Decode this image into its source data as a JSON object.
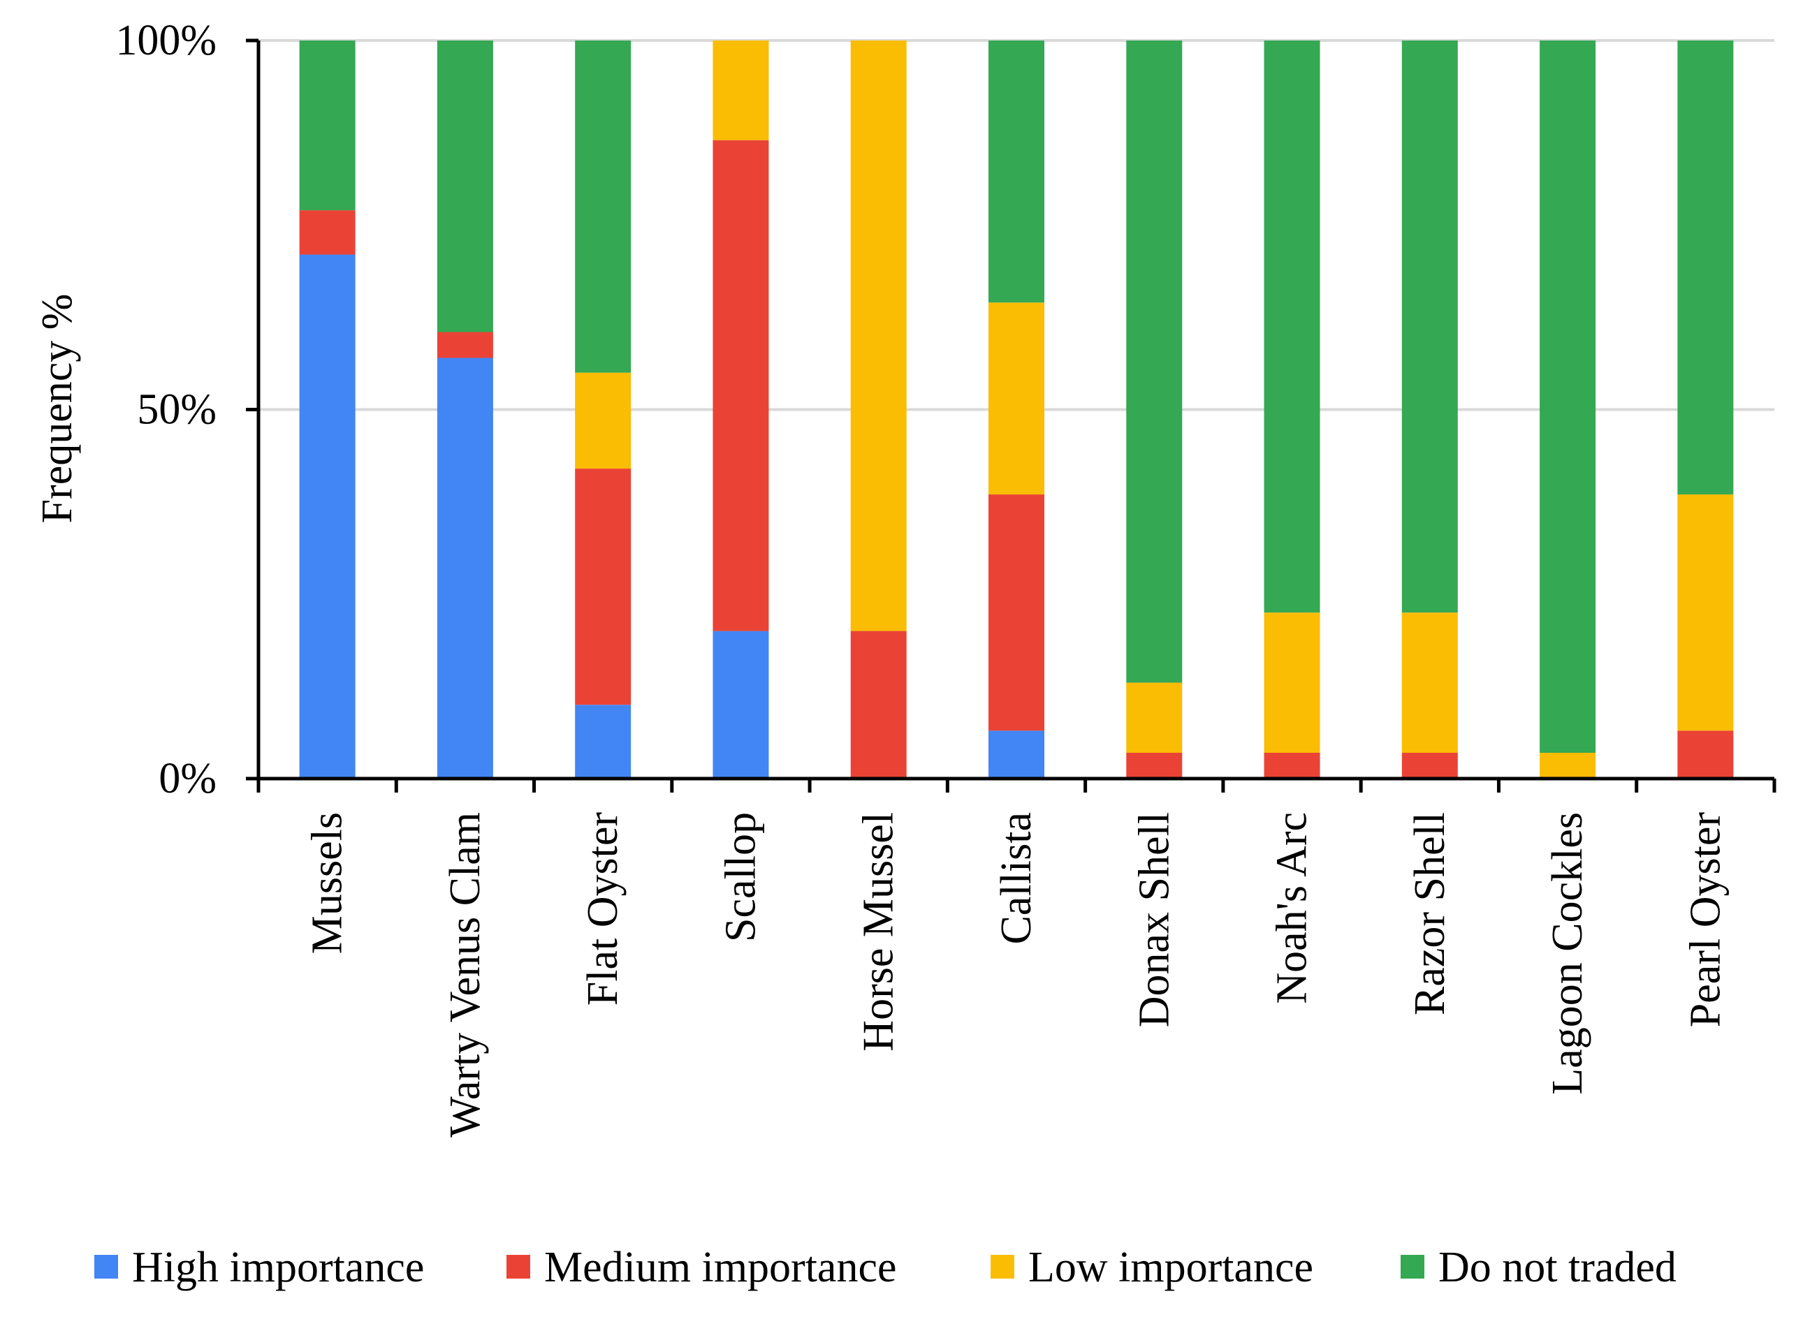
{
  "chart_data": {
    "type": "bar",
    "stacked": true,
    "normalized": true,
    "title": "",
    "xlabel": "",
    "ylabel": "Frequency %",
    "ylim": [
      0,
      100
    ],
    "yticks": [
      "0%",
      "50%",
      "100%"
    ],
    "ytick_values": [
      0,
      50,
      100
    ],
    "grid": "horizontal",
    "legend_position": "bottom",
    "categories": [
      "Mussels",
      "Warty Venus Clam",
      "Flat Oyster",
      "Scallop",
      "Horse Mussel",
      "Callista",
      "Donax Shell",
      "Noah's Arc",
      "Razor Shell",
      "Lagoon Cockles",
      "Pearl Oyster"
    ],
    "series": [
      {
        "name": "High importance",
        "color": "#4285F4",
        "values": [
          71,
          57,
          10,
          20,
          0,
          6.5,
          0,
          0,
          0,
          0,
          0
        ]
      },
      {
        "name": "Medium importance",
        "color": "#EA4335",
        "values": [
          6,
          3.5,
          32,
          66.5,
          20,
          32,
          3.5,
          3.5,
          3.5,
          0,
          6.5
        ]
      },
      {
        "name": "Low importance",
        "color": "#FBBC04",
        "values": [
          0,
          0,
          13,
          13.5,
          80,
          26,
          9.5,
          19,
          19,
          3.5,
          32
        ]
      },
      {
        "name": "Do not traded",
        "color": "#34A853",
        "values": [
          23,
          39.5,
          45,
          0,
          0,
          35.5,
          87,
          77.5,
          77.5,
          96.5,
          61.5
        ]
      }
    ]
  }
}
